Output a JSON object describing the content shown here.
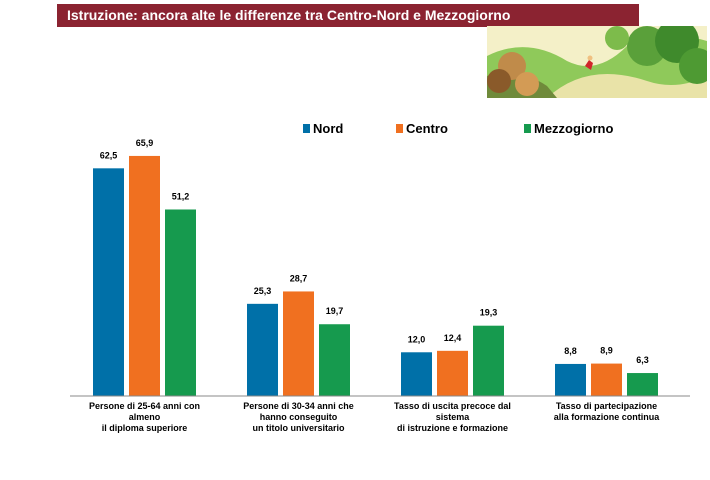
{
  "header": {
    "title": "Istruzione: ancora alte le differenze tra Centro-Nord e Mezzogiorno",
    "colors": {
      "bar": "#8b2331",
      "text": "#ffffff"
    },
    "illustration_icon": "landscape-hills-runner-illustration"
  },
  "chart_data": {
    "type": "bar",
    "title": "",
    "xlabel": "",
    "ylabel": "",
    "ylim": [
      0,
      70
    ],
    "grid": false,
    "legend_position": "top",
    "categories": [
      [
        "Persone di 25-64 anni con",
        "almeno",
        "il diploma superiore"
      ],
      [
        "Persone di 30-34 anni che",
        "hanno conseguito",
        "un titolo universitario"
      ],
      [
        "Tasso di uscita precoce dal",
        "sistema",
        "di istruzione e formazione"
      ],
      [
        "Tasso di partecipazione",
        "alla formazione continua"
      ]
    ],
    "series": [
      {
        "name": "Nord",
        "color": "#0070a8",
        "values": [
          62.5,
          25.3,
          12.0,
          8.8
        ],
        "labels": [
          "62,5",
          "25,3",
          "12,0",
          "8,8"
        ]
      },
      {
        "name": "Centro",
        "color": "#f07020",
        "values": [
          65.9,
          28.7,
          12.4,
          8.9
        ],
        "labels": [
          "65,9",
          "28,7",
          "12,4",
          "8,9"
        ]
      },
      {
        "name": "Mezzogiorno",
        "color": "#169a4e",
        "values": [
          51.2,
          19.7,
          19.3,
          6.3
        ],
        "labels": [
          "51,2",
          "19,7",
          "19,3",
          "6,3"
        ]
      }
    ]
  }
}
